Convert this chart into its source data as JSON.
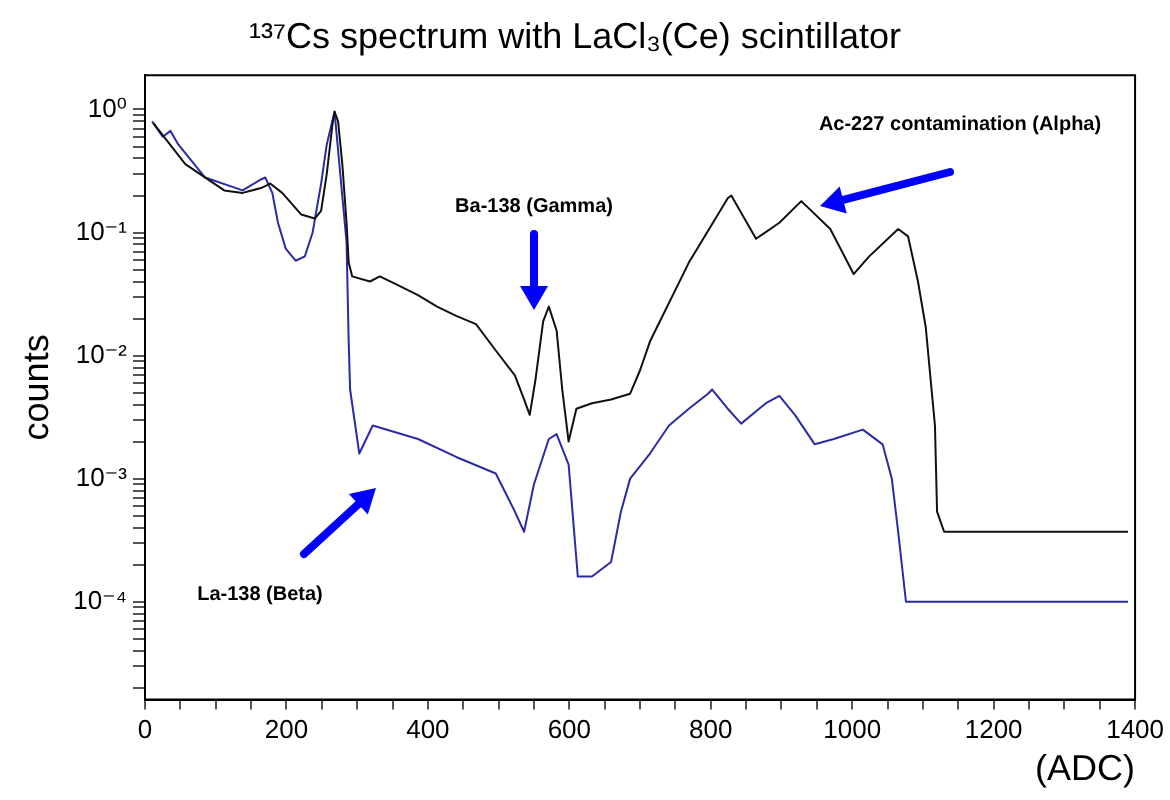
{
  "chart_data": {
    "type": "line",
    "title": "¹³⁷Cs spectrum with LaCl₃(Ce) scintillator",
    "xlabel": "(ADC)",
    "ylabel": "counts",
    "series": [
      {
        "color": "#111111",
        "x": [
          12,
          57,
          112,
          138,
          164,
          177,
          194,
          221,
          240,
          249,
          257,
          265,
          268,
          273,
          279,
          285,
          288,
          293,
          318,
          332,
          359,
          386,
          413,
          440,
          468,
          496,
          523,
          536,
          544,
          552,
          563,
          571,
          582,
          590,
          599,
          610,
          632,
          659,
          686,
          700,
          714,
          769,
          824,
          829,
          864,
          897,
          928,
          969,
          1002,
          1024,
          1065,
          1079,
          1093,
          1104,
          1117,
          1120,
          1130,
          1390
        ],
        "values": [
          0.77,
          0.36,
          0.22,
          0.21,
          0.23,
          0.25,
          0.21,
          0.14,
          0.13,
          0.15,
          0.3,
          0.75,
          0.96,
          0.8,
          0.36,
          0.12,
          0.057,
          0.044,
          0.04,
          0.044,
          0.037,
          0.031,
          0.025,
          0.021,
          0.018,
          0.011,
          0.0069,
          0.0044,
          0.0033,
          0.0063,
          0.019,
          0.025,
          0.016,
          0.0053,
          0.002,
          0.0037,
          0.0041,
          0.0044,
          0.0049,
          0.0076,
          0.013,
          0.057,
          0.19,
          0.2,
          0.089,
          0.12,
          0.18,
          0.107,
          0.046,
          0.064,
          0.107,
          0.093,
          0.04,
          0.017,
          0.0027,
          0.00054,
          0.00037,
          0.00037
        ]
      },
      {
        "color": "#2b2ba8",
        "x": [
          10,
          25,
          36,
          47,
          85,
          138,
          164,
          170,
          180,
          188,
          199,
          213,
          226,
          237,
          249,
          257,
          268,
          285,
          288,
          290,
          303,
          322,
          386,
          440,
          496,
          523,
          536,
          550,
          571,
          582,
          599,
          612,
          632,
          659,
          673,
          686,
          714,
          741,
          769,
          796,
          802,
          824,
          843,
          878,
          897,
          919,
          947,
          974,
          1015,
          1043,
          1056,
          1065,
          1076,
          1390
        ],
        "values": [
          0.8,
          0.6,
          0.67,
          0.52,
          0.28,
          0.22,
          0.27,
          0.28,
          0.21,
          0.12,
          0.074,
          0.059,
          0.064,
          0.1,
          0.25,
          0.52,
          0.96,
          0.083,
          0.013,
          0.0053,
          0.0016,
          0.0027,
          0.0021,
          0.0015,
          0.0011,
          0.00054,
          0.00037,
          0.0009,
          0.0021,
          0.0023,
          0.0013,
          0.00016,
          0.00016,
          0.00021,
          0.00054,
          0.001,
          0.0016,
          0.0027,
          0.0037,
          0.0049,
          0.0053,
          0.0037,
          0.0028,
          0.0041,
          0.0047,
          0.0033,
          0.0019,
          0.0021,
          0.0025,
          0.0019,
          0.001,
          0.00037,
          0.0001,
          0.0001
        ]
      }
    ],
    "xlim": [
      0,
      1400
    ],
    "xticks": [
      0,
      {
        "value": 50,
        "label": null
      },
      {
        "value": 100,
        "label": null
      },
      {
        "value": 150,
        "label": null
      },
      200,
      {
        "value": 250,
        "label": null
      },
      {
        "value": 300,
        "label": null
      },
      {
        "value": 350,
        "label": null
      },
      400,
      {
        "value": 450,
        "label": null
      },
      {
        "value": 500,
        "label": null
      },
      {
        "value": 550,
        "label": null
      },
      600,
      {
        "value": 650,
        "label": null
      },
      {
        "value": 700,
        "label": null
      },
      {
        "value": 750,
        "label": null
      },
      800,
      {
        "value": 850,
        "label": null
      },
      {
        "value": 900,
        "label": null
      },
      {
        "value": 950,
        "label": null
      },
      1000,
      {
        "value": 1050,
        "label": null
      },
      {
        "value": 1100,
        "label": null
      },
      {
        "value": 1150,
        "label": null
      },
      1200,
      {
        "value": 1250,
        "label": null
      },
      {
        "value": 1300,
        "label": null
      },
      {
        "value": 1350,
        "label": null
      },
      1400
    ],
    "ylim": [
      1.6e-05,
      1.9
    ],
    "yticks": [
      {
        "value": 2e-05,
        "label": null
      },
      {
        "value": 3e-05,
        "label": null
      },
      {
        "value": 4e-05,
        "label": null
      },
      {
        "value": 5e-05,
        "label": null
      },
      {
        "value": 6e-05,
        "label": null
      },
      {
        "value": 7e-05,
        "label": null
      },
      {
        "value": 8e-05,
        "label": null
      },
      {
        "value": 9e-05,
        "label": null
      },
      {
        "value": 0.0001,
        "label": "10⁻⁴"
      },
      {
        "value": 0.0002,
        "label": null
      },
      {
        "value": 0.0003,
        "label": null
      },
      {
        "value": 0.0004,
        "label": null
      },
      {
        "value": 0.0005,
        "label": null
      },
      {
        "value": 0.0006,
        "label": null
      },
      {
        "value": 0.0007,
        "label": null
      },
      {
        "value": 0.0008,
        "label": null
      },
      {
        "value": 0.0009,
        "label": null
      },
      {
        "value": 0.001,
        "label": "10⁻³"
      },
      {
        "value": 0.002,
        "label": null
      },
      {
        "value": 0.003,
        "label": null
      },
      {
        "value": 0.004,
        "label": null
      },
      {
        "value": 0.005,
        "label": null
      },
      {
        "value": 0.006,
        "label": null
      },
      {
        "value": 0.007,
        "label": null
      },
      {
        "value": 0.008,
        "label": null
      },
      {
        "value": 0.009,
        "label": null
      },
      {
        "value": 0.01,
        "label": "10⁻²"
      },
      {
        "value": 0.02,
        "label": null
      },
      {
        "value": 0.03,
        "label": null
      },
      {
        "value": 0.04,
        "label": null
      },
      {
        "value": 0.05,
        "label": null
      },
      {
        "value": 0.06,
        "label": null
      },
      {
        "value": 0.07,
        "label": null
      },
      {
        "value": 0.08,
        "label": null
      },
      {
        "value": 0.09,
        "label": null
      },
      {
        "value": 0.1,
        "label": "10⁻¹"
      },
      {
        "value": 0.2,
        "label": null
      },
      {
        "value": 0.3,
        "label": null
      },
      {
        "value": 0.4,
        "label": null
      },
      {
        "value": 0.5,
        "label": null
      },
      {
        "value": 0.6,
        "label": null
      },
      {
        "value": 0.7,
        "label": null
      },
      {
        "value": 0.8,
        "label": null
      },
      {
        "value": 0.9,
        "label": null
      },
      {
        "value": 1,
        "label": "10⁰"
      }
    ],
    "log": "y",
    "grid": false,
    "legend": false,
    "marker": "none",
    "line_style": "solid",
    "annotations": [
      "Ba-138 (Gamma)",
      "Ac-227 contamination (Alpha)",
      "La-138 (Beta)"
    ]
  }
}
